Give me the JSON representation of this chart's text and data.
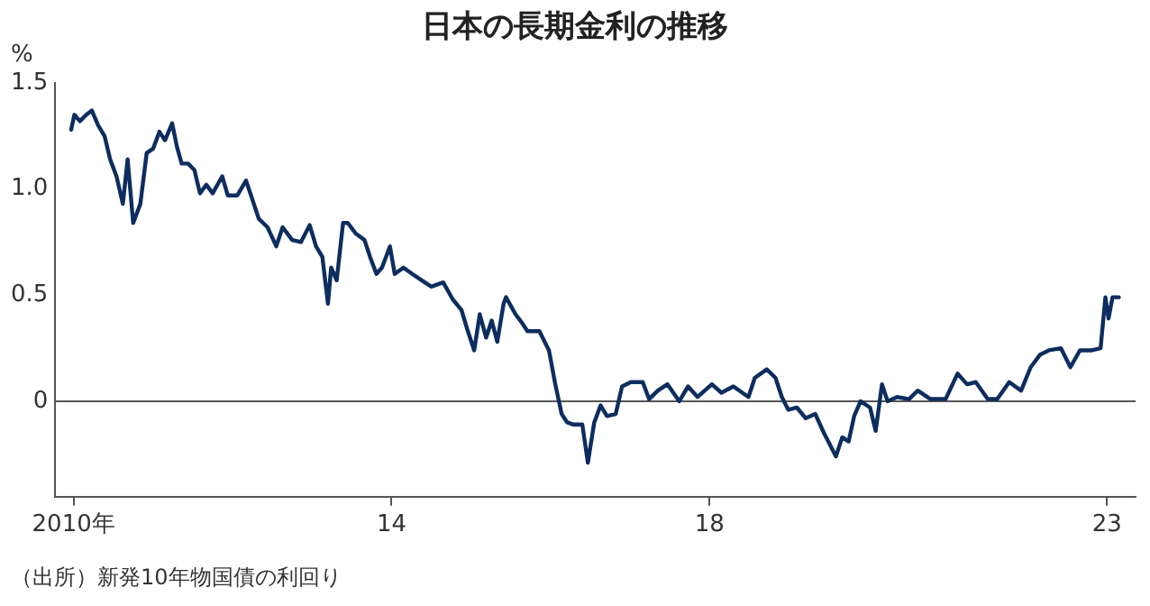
{
  "chart_data": {
    "type": "line",
    "title": "日本の長期金利の推移",
    "ylabel": "%",
    "annotations": [
      "（出所）新発10年物国債の利回り"
    ],
    "x": [
      2009.97,
      2010.01,
      2010.08,
      2010.16,
      2010.23,
      2010.31,
      2010.39,
      2010.46,
      2010.54,
      2010.62,
      2010.68,
      2010.75,
      2010.84,
      2010.92,
      2011.0,
      2011.08,
      2011.15,
      2011.24,
      2011.3,
      2011.36,
      2011.44,
      2011.52,
      2011.59,
      2011.67,
      2011.75,
      2011.87,
      2011.94,
      2012.06,
      2012.17,
      2012.25,
      2012.33,
      2012.44,
      2012.55,
      2012.63,
      2012.75,
      2012.86,
      2012.97,
      2013.05,
      2013.13,
      2013.2,
      2013.24,
      2013.31,
      2013.39,
      2013.45,
      2013.55,
      2013.66,
      2013.73,
      2013.81,
      2013.88,
      2013.98,
      2014.04,
      2014.15,
      2014.26,
      2014.38,
      2014.5,
      2014.65,
      2014.77,
      2014.88,
      2014.96,
      2015.04,
      2015.11,
      2015.19,
      2015.26,
      2015.33,
      2015.41,
      2015.44,
      2015.56,
      2015.64,
      2015.71,
      2015.86,
      2015.98,
      2016.06,
      2016.14,
      2016.21,
      2016.29,
      2016.33,
      2016.4,
      2016.47,
      2016.55,
      2016.63,
      2016.71,
      2016.82,
      2016.9,
      2017.01,
      2017.16,
      2017.24,
      2017.35,
      2017.47,
      2017.62,
      2017.73,
      2017.85,
      2018.03,
      2018.15,
      2018.3,
      2018.49,
      2018.57,
      2018.72,
      2018.83,
      2018.91,
      2018.99,
      2019.1,
      2019.21,
      2019.33,
      2019.44,
      2019.59,
      2019.67,
      2019.75,
      2019.82,
      2019.9,
      2020.02,
      2020.09,
      2020.17,
      2020.24,
      2020.36,
      2020.51,
      2020.62,
      2020.78,
      2020.97,
      2021.12,
      2021.24,
      2021.35,
      2021.5,
      2021.62,
      2021.77,
      2021.92,
      2022.04,
      2022.16,
      2022.27,
      2022.42,
      2022.54,
      2022.66,
      2022.81,
      2022.92,
      2022.98,
      2023.02,
      2023.07,
      2023.15
    ],
    "series": [
      {
        "color": "#0d2d5e",
        "values": [
          1.28,
          1.35,
          1.32,
          1.35,
          1.37,
          1.3,
          1.25,
          1.14,
          1.06,
          0.93,
          1.14,
          0.84,
          0.93,
          1.17,
          1.19,
          1.27,
          1.23,
          1.31,
          1.2,
          1.12,
          1.12,
          1.09,
          0.98,
          1.02,
          0.98,
          1.06,
          0.97,
          0.97,
          1.04,
          0.95,
          0.86,
          0.82,
          0.73,
          0.82,
          0.76,
          0.75,
          0.83,
          0.73,
          0.68,
          0.46,
          0.63,
          0.57,
          0.84,
          0.84,
          0.79,
          0.76,
          0.68,
          0.6,
          0.63,
          0.73,
          0.6,
          0.63,
          0.6,
          0.57,
          0.54,
          0.56,
          0.48,
          0.43,
          0.33,
          0.24,
          0.41,
          0.3,
          0.38,
          0.28,
          0.46,
          0.49,
          0.41,
          0.37,
          0.33,
          0.33,
          0.24,
          0.08,
          -0.06,
          -0.1,
          -0.11,
          -0.11,
          -0.11,
          -0.29,
          -0.1,
          -0.02,
          -0.07,
          -0.06,
          0.07,
          0.09,
          0.09,
          0.01,
          0.05,
          0.08,
          0.0,
          0.07,
          0.02,
          0.08,
          0.04,
          0.07,
          0.02,
          0.11,
          0.15,
          0.11,
          0.02,
          -0.04,
          -0.03,
          -0.08,
          -0.06,
          -0.15,
          -0.26,
          -0.17,
          -0.19,
          -0.07,
          0.0,
          -0.03,
          -0.14,
          0.08,
          0.0,
          0.02,
          0.01,
          0.05,
          0.01,
          0.01,
          0.13,
          0.08,
          0.09,
          0.01,
          0.01,
          0.09,
          0.05,
          0.16,
          0.22,
          0.24,
          0.25,
          0.16,
          0.24,
          0.24,
          0.25,
          0.49,
          0.39,
          0.49,
          0.49
        ]
      }
    ],
    "xlim": [
      2009.77,
      2023.36
    ],
    "xticks": [
      {
        "value": 2010,
        "label": "2010年"
      },
      {
        "value": 2014,
        "label": "14"
      },
      {
        "value": 2018,
        "label": "18"
      },
      {
        "value": 2023,
        "label": "23"
      }
    ],
    "ylim": [
      -0.45,
      1.5
    ],
    "yticks": [
      0,
      {
        "value": 0.5,
        "label": "0.5"
      },
      {
        "value": 1,
        "label": "1.0"
      },
      {
        "value": 1.5,
        "label": "1.5"
      }
    ],
    "ref_lines": [
      {
        "axis": "y",
        "value": 0,
        "color": "#555555"
      }
    ],
    "grid": false,
    "legend": false,
    "marker": "none",
    "line_style": "solid"
  }
}
